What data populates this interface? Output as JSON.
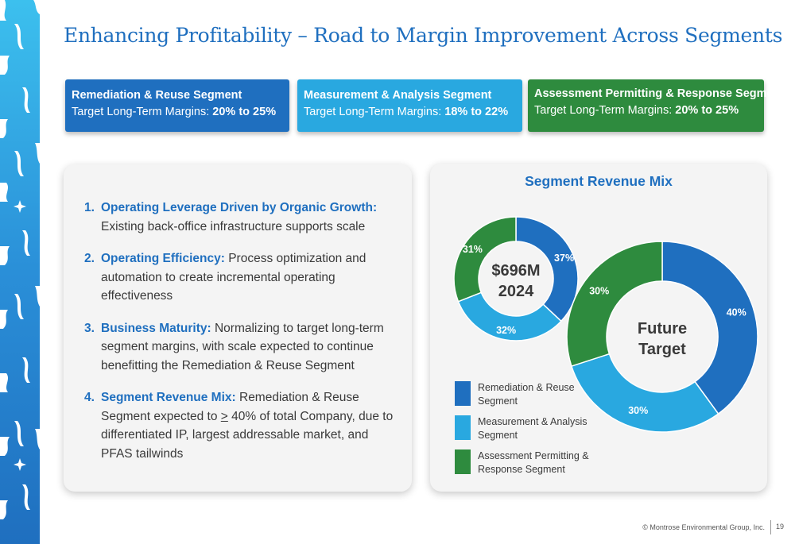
{
  "title": "Enhancing Profitability – Road to Margin Improvement Across Segments",
  "colors": {
    "blue": "#1f6fbf",
    "light_blue": "#29a8e0",
    "green": "#2e8b3e"
  },
  "segments": [
    {
      "name": "Remediation & Reuse Segment",
      "target_label": "Target Long-Term Margins: ",
      "target_value": "20% to 25%"
    },
    {
      "name": "Measurement & Analysis Segment",
      "target_label": "Target Long-Term Margins: ",
      "target_value": "18% to 22%"
    },
    {
      "name": "Assessment Permitting & Response Segment",
      "target_label": "Target Long-Term Margins: ",
      "target_value": "20% to 25%"
    }
  ],
  "points": [
    {
      "number": "1.",
      "heading": "Operating Leverage Driven by Organic Growth:",
      "text": " Existing back-office infrastructure supports scale"
    },
    {
      "number": "2.",
      "heading": "Operating Efficiency:",
      "text": " Process optimization and automation to create incremental operating effectiveness"
    },
    {
      "number": "3.",
      "heading": "Business Maturity:",
      "text": " Normalizing to target long-term segment margins, with scale expected to continue benefitting the Remediation & Reuse Segment"
    },
    {
      "number": "4.",
      "heading": "Segment Revenue Mix:",
      "text": " Remediation & Reuse Segment expected to ",
      "underlined": ">",
      "text_after": " 40% of total Company, due to differentiated IP, largest addressable market, and PFAS tailwinds"
    }
  ],
  "chart_data": {
    "type": "pie",
    "title": "Segment Revenue Mix",
    "categories": [
      "Remediation & Reuse Segment",
      "Measurement & Analysis Segment",
      "Assessment Permitting & Response Segment"
    ],
    "series": [
      {
        "center_label_line1": "$696M",
        "center_label_line2": "2024",
        "values": [
          37,
          32,
          31
        ],
        "labels": [
          "37%",
          "32%",
          "31%"
        ]
      },
      {
        "center_label_line1": "Future",
        "center_label_line2": "Target",
        "values": [
          40,
          30,
          30
        ],
        "labels": [
          "40%",
          "30%",
          "30%"
        ]
      }
    ],
    "legend": [
      "Remediation & Reuse Segment",
      "Measurement & Analysis Segment",
      "Assessment Permitting & Response Segment"
    ],
    "legend_position": "bottom-left"
  },
  "footer": {
    "copyright": "© Montrose Environmental Group, Inc.",
    "page_number": "19"
  }
}
